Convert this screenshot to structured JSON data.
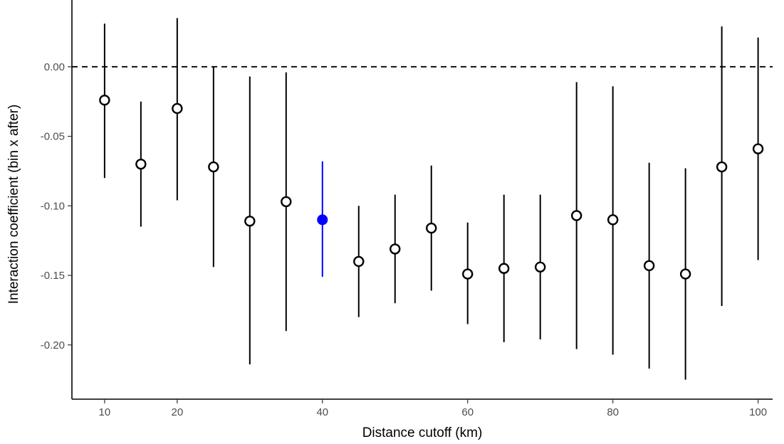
{
  "chart_data": {
    "type": "scatter",
    "xlabel": "Distance cutoff (km)",
    "ylabel": "Interaction coefficient (bin x after)",
    "xlim": [
      5.5,
      102
    ],
    "ylim": [
      -0.239,
      0.048
    ],
    "x_ticks": [
      10,
      20,
      40,
      60,
      80,
      100
    ],
    "y_ticks": [
      0.0,
      -0.05,
      -0.1,
      -0.15,
      -0.2
    ],
    "y_tick_labels": [
      "0.00",
      "-0.05",
      "-0.10",
      "-0.15",
      "-0.20"
    ],
    "reference_line": {
      "y": 0.0,
      "style": "dashed"
    },
    "grid": false,
    "highlight_color": "#0000ff",
    "default_color": "#000000",
    "points": [
      {
        "x": 10,
        "y": -0.024,
        "lo": -0.08,
        "hi": 0.031,
        "highlight": false
      },
      {
        "x": 15,
        "y": -0.07,
        "lo": -0.115,
        "hi": -0.025,
        "highlight": false
      },
      {
        "x": 20,
        "y": -0.03,
        "lo": -0.096,
        "hi": 0.035,
        "highlight": false
      },
      {
        "x": 25,
        "y": -0.072,
        "lo": -0.144,
        "hi": 0.0,
        "highlight": false
      },
      {
        "x": 30,
        "y": -0.111,
        "lo": -0.214,
        "hi": -0.007,
        "highlight": false
      },
      {
        "x": 35,
        "y": -0.097,
        "lo": -0.19,
        "hi": -0.004,
        "highlight": false
      },
      {
        "x": 40,
        "y": -0.11,
        "lo": -0.151,
        "hi": -0.068,
        "highlight": true
      },
      {
        "x": 45,
        "y": -0.14,
        "lo": -0.18,
        "hi": -0.1,
        "highlight": false
      },
      {
        "x": 50,
        "y": -0.131,
        "lo": -0.17,
        "hi": -0.092,
        "highlight": false
      },
      {
        "x": 55,
        "y": -0.116,
        "lo": -0.161,
        "hi": -0.071,
        "highlight": false
      },
      {
        "x": 60,
        "y": -0.149,
        "lo": -0.185,
        "hi": -0.112,
        "highlight": false
      },
      {
        "x": 65,
        "y": -0.145,
        "lo": -0.198,
        "hi": -0.092,
        "highlight": false
      },
      {
        "x": 70,
        "y": -0.144,
        "lo": -0.196,
        "hi": -0.092,
        "highlight": false
      },
      {
        "x": 75,
        "y": -0.107,
        "lo": -0.203,
        "hi": -0.011,
        "highlight": false
      },
      {
        "x": 80,
        "y": -0.11,
        "lo": -0.207,
        "hi": -0.014,
        "highlight": false
      },
      {
        "x": 85,
        "y": -0.143,
        "lo": -0.217,
        "hi": -0.069,
        "highlight": false
      },
      {
        "x": 90,
        "y": -0.149,
        "lo": -0.225,
        "hi": -0.073,
        "highlight": false
      },
      {
        "x": 95,
        "y": -0.072,
        "lo": -0.172,
        "hi": 0.029,
        "highlight": false
      },
      {
        "x": 100,
        "y": -0.059,
        "lo": -0.139,
        "hi": 0.021,
        "highlight": false
      }
    ]
  }
}
